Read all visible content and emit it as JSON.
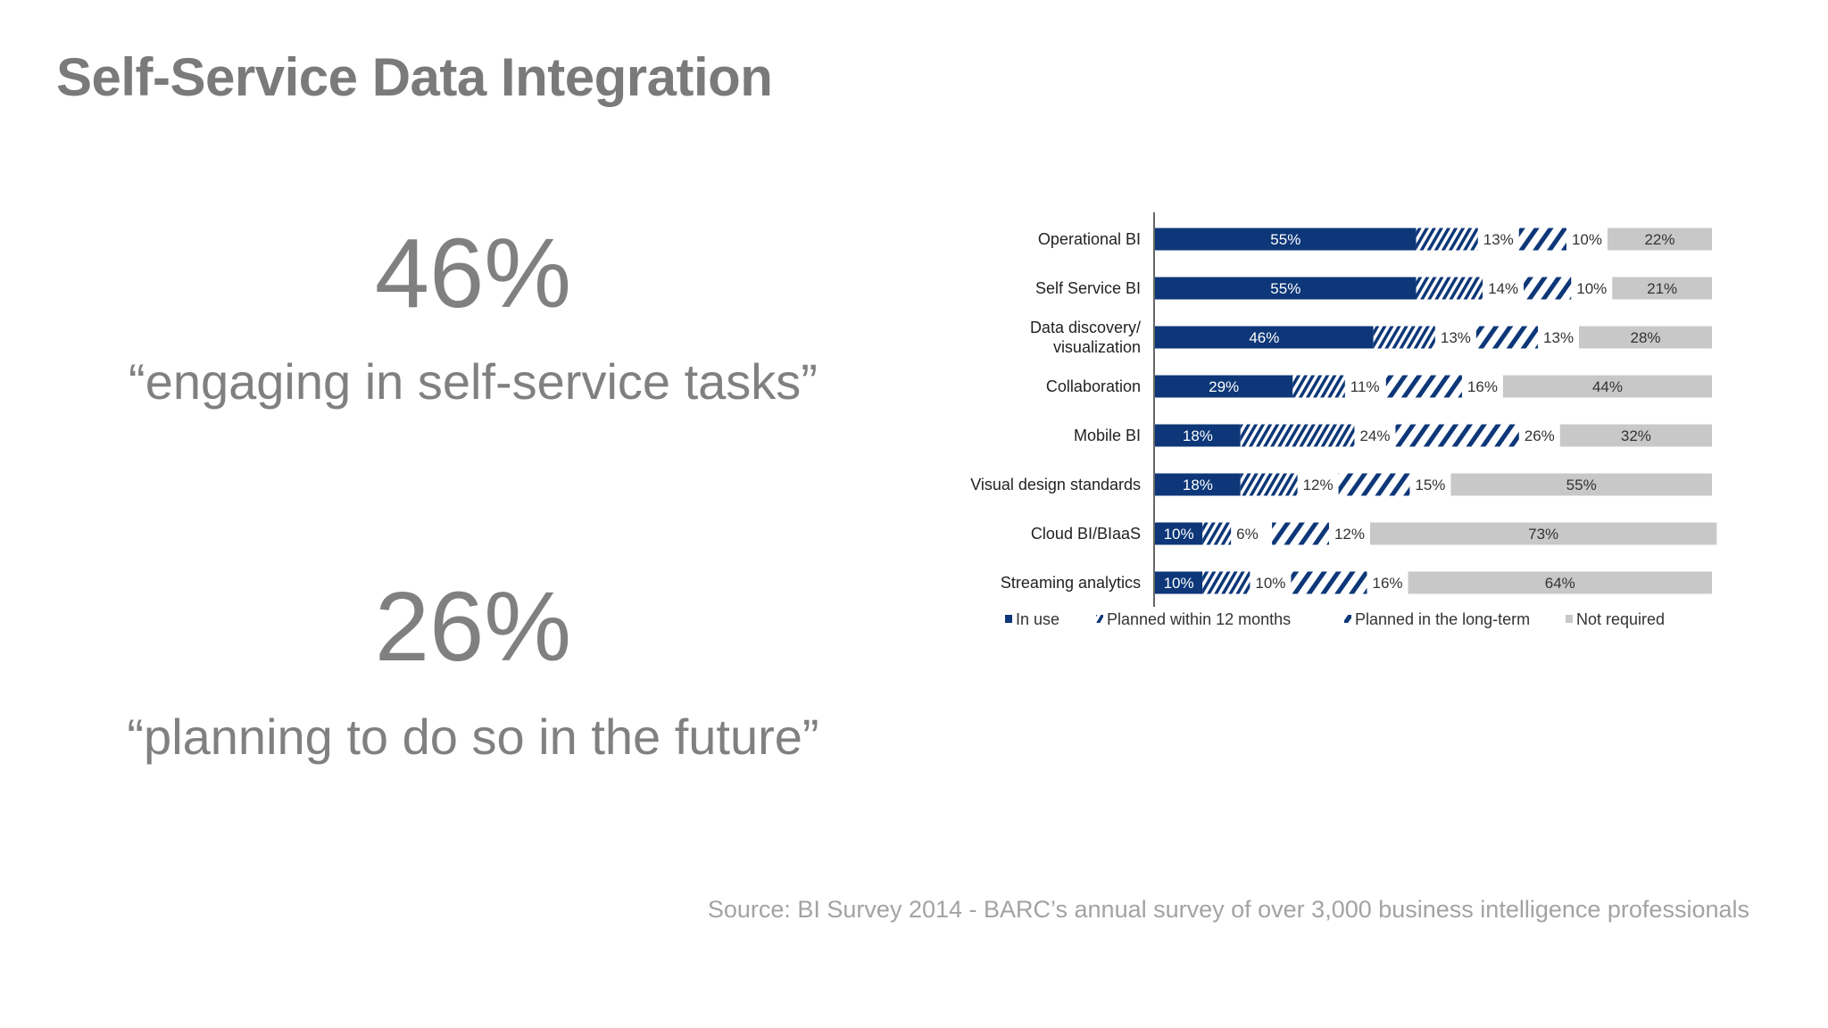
{
  "slide": {
    "title": "Self-Service Data Integration",
    "stats": [
      {
        "value": "46%",
        "caption": "“engaging in self-service tasks”"
      },
      {
        "value": "26%",
        "caption": "“planning to do so in the future”"
      }
    ],
    "source": "Source: BI Survey 2014 - BARC’s annual survey of over 3,000 business intelligence professionals"
  },
  "chart_data": {
    "type": "bar",
    "orientation": "horizontal",
    "stacked": true,
    "percent_stacked": true,
    "categories": [
      "Operational BI",
      "Self Service BI",
      "Data discovery/\nvisualization",
      "Collaboration",
      "Mobile BI",
      "Visual design standards",
      "Cloud BI/BIaaS",
      "Streaming analytics"
    ],
    "series": [
      {
        "name": "In use",
        "values": [
          55,
          55,
          46,
          29,
          18,
          18,
          10,
          10
        ],
        "color": "#0d3778",
        "pattern": "solid"
      },
      {
        "name": "Planned within 12 months",
        "values": [
          13,
          14,
          13,
          11,
          24,
          12,
          6,
          10
        ],
        "color": "#0d3778",
        "pattern": "fine-hatch"
      },
      {
        "name": "Planned in the long-term",
        "values": [
          10,
          10,
          13,
          16,
          26,
          15,
          12,
          16
        ],
        "color": "#0d3778",
        "pattern": "wide-hatch"
      },
      {
        "name": "Not required",
        "values": [
          22,
          21,
          28,
          44,
          32,
          55,
          73,
          64
        ],
        "color": "#c8c8c8",
        "pattern": "solid"
      }
    ],
    "value_labels": {
      "In use": [
        "55%",
        "55%",
        "46%",
        "29%",
        "18%",
        "18%",
        "10%",
        "10%"
      ],
      "Planned within 12 months": [
        "13%",
        "14%",
        "13%",
        "11%",
        "24%",
        "12%",
        "6%",
        "10%"
      ],
      "Planned in the long-term": [
        "10%",
        "10%",
        "13%",
        "16%",
        "26%",
        "15%",
        "12%",
        "16%"
      ],
      "Not required": [
        "22%",
        "21%",
        "28%",
        "44%",
        "32%",
        "55%",
        "73%",
        "64%"
      ]
    },
    "xlim": [
      0,
      100
    ],
    "legend_position": "bottom",
    "grid": false
  }
}
